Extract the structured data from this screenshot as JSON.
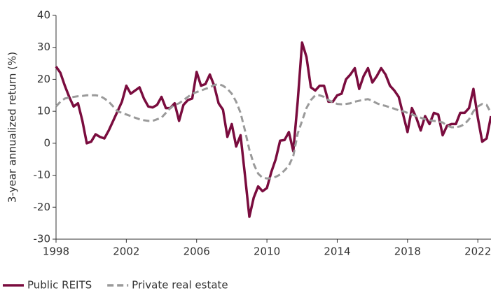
{
  "chart_data": {
    "type": "line",
    "ylabel": "3-year annualized return (%)",
    "x": [
      1998,
      1998.25,
      1998.5,
      1998.75,
      1999,
      1999.25,
      1999.5,
      1999.75,
      2000,
      2000.25,
      2000.5,
      2000.75,
      2001,
      2001.25,
      2001.5,
      2001.75,
      2002,
      2002.25,
      2002.5,
      2002.75,
      2003,
      2003.25,
      2003.5,
      2003.75,
      2004,
      2004.25,
      2004.5,
      2004.75,
      2005,
      2005.25,
      2005.5,
      2005.75,
      2006,
      2006.25,
      2006.5,
      2006.75,
      2007,
      2007.25,
      2007.5,
      2007.75,
      2008,
      2008.25,
      2008.5,
      2008.75,
      2009,
      2009.25,
      2009.5,
      2009.75,
      2010,
      2010.25,
      2010.5,
      2010.75,
      2011,
      2011.25,
      2011.5,
      2011.75,
      2012,
      2012.25,
      2012.5,
      2012.75,
      2013,
      2013.25,
      2013.5,
      2013.75,
      2014,
      2014.25,
      2014.5,
      2014.75,
      2015,
      2015.25,
      2015.5,
      2015.75,
      2016,
      2016.25,
      2016.5,
      2016.75,
      2017,
      2017.25,
      2017.5,
      2017.75,
      2018,
      2018.25,
      2018.5,
      2018.75,
      2019,
      2019.25,
      2019.5,
      2019.75,
      2020,
      2020.25,
      2020.5,
      2020.75,
      2021,
      2021.25,
      2021.5,
      2021.75,
      2022,
      2022.25,
      2022.5,
      2022.75
    ],
    "series": [
      {
        "name": "Public REITS",
        "color": "#7a0c3e",
        "dash": false,
        "values": [
          24,
          22,
          18,
          14.5,
          11.5,
          12.5,
          7,
          0,
          0.5,
          2.8,
          2,
          1.5,
          4,
          7,
          10,
          13,
          18,
          15.5,
          16.5,
          17.5,
          14,
          11.5,
          11.2,
          12,
          14.5,
          11,
          11,
          12.5,
          7,
          12,
          13.5,
          14,
          22.3,
          18,
          18.5,
          21.5,
          18,
          12.5,
          10.5,
          2,
          6,
          -1,
          2.5,
          -10,
          -23,
          -17,
          -13.5,
          -15,
          -14,
          -9,
          -5,
          0.8,
          1,
          3.5,
          -2.5,
          13,
          31.5,
          27,
          17.5,
          16.5,
          18,
          18,
          13,
          13,
          15,
          15.5,
          20,
          21.5,
          23.5,
          17,
          21,
          23.5,
          19,
          21,
          23.5,
          21.5,
          18,
          16.5,
          14.5,
          9,
          3.5,
          11,
          8,
          4,
          8.5,
          6,
          9.5,
          9,
          2.5,
          5.5,
          6,
          6,
          9.5,
          9.5,
          11,
          17,
          8,
          0.5,
          1.5,
          8.5
        ]
      },
      {
        "name": "Private real estate",
        "color": "#9a9a9a",
        "dash": true,
        "values": [
          11.5,
          13,
          14,
          14.3,
          14.5,
          14.7,
          14.8,
          15,
          15,
          15,
          14.8,
          14,
          13,
          11.5,
          10,
          9.5,
          9,
          8.5,
          8,
          7.5,
          7.2,
          7,
          7,
          7.5,
          8,
          9.5,
          11,
          12,
          12.5,
          13.5,
          14.5,
          15.5,
          16,
          16.5,
          17,
          17.5,
          18.2,
          18.5,
          18,
          17,
          15.5,
          13,
          9.5,
          4,
          -2,
          -6.5,
          -9.5,
          -10.8,
          -11,
          -11,
          -10.5,
          -9.8,
          -8.5,
          -7,
          -4,
          3,
          7,
          11,
          13.5,
          15,
          15,
          14.5,
          13.5,
          12.8,
          12.3,
          12.2,
          12.3,
          12.5,
          13,
          13.3,
          13.6,
          13.8,
          13.3,
          12.5,
          12,
          11.7,
          11.2,
          10.8,
          10.3,
          10,
          9.5,
          9,
          8.5,
          8,
          7.5,
          7.2,
          7,
          6.8,
          6.5,
          5.5,
          5,
          5,
          5.3,
          6,
          7.5,
          10,
          11.5,
          12.3,
          12,
          9.5
        ]
      }
    ],
    "xlim": [
      1998,
      2022.75
    ],
    "xticks": [
      1998,
      2002,
      2006,
      2010,
      2014,
      2018,
      2022
    ],
    "ylim": [
      -30,
      40
    ],
    "yticks": [
      -30,
      -20,
      -10,
      0,
      10,
      20,
      30,
      40
    ],
    "legend": "bottom-left"
  }
}
